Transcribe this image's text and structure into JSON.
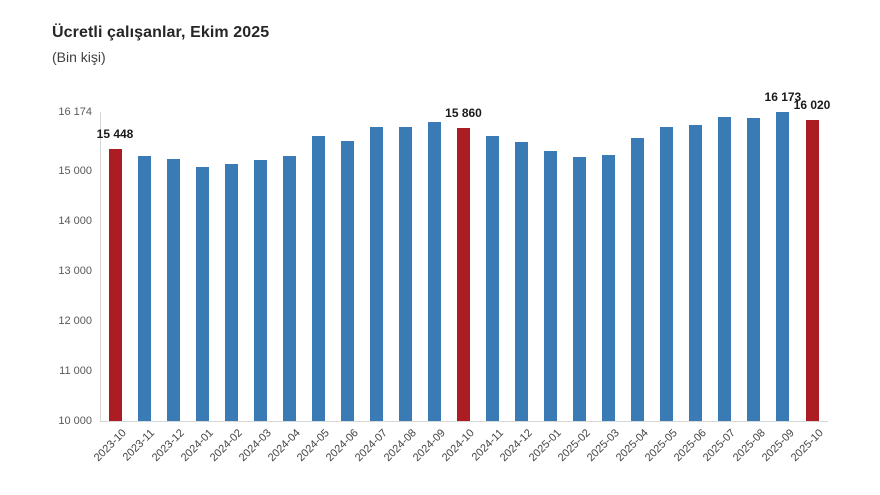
{
  "chart_data": {
    "type": "bar",
    "title": "Ücretli çalışanlar, Ekim 2025",
    "subtitle": "(Bin kişi)",
    "categories": [
      "2023-10",
      "2023-11",
      "2023-12",
      "2024-01",
      "2024-02",
      "2024-03",
      "2024-04",
      "2024-05",
      "2024-06",
      "2024-07",
      "2024-08",
      "2024-09",
      "2024-10",
      "2024-11",
      "2024-12",
      "2025-01",
      "2025-02",
      "2025-03",
      "2025-04",
      "2025-05",
      "2025-06",
      "2025-07",
      "2025-08",
      "2025-09",
      "2025-10"
    ],
    "values": [
      15448,
      15310,
      15250,
      15080,
      15150,
      15215,
      15295,
      15700,
      15600,
      15890,
      15885,
      15985,
      15860,
      15710,
      15575,
      15410,
      15290,
      15320,
      15655,
      15880,
      15920,
      16090,
      16065,
      16173,
      16020
    ],
    "bar_color": "#3A7BB5",
    "highlight_color": "#AC1D23",
    "highlight_indices": [
      0,
      12,
      24
    ],
    "data_labels": [
      {
        "index": 0,
        "text": "15 448"
      },
      {
        "index": 12,
        "text": "15 860"
      },
      {
        "index": 23,
        "text": "16 173"
      },
      {
        "index": 24,
        "text": "16 020"
      }
    ],
    "y_ticks": [
      {
        "value": 16174,
        "label": "16 174"
      },
      {
        "value": 15000,
        "label": "15 000"
      },
      {
        "value": 14000,
        "label": "14 000"
      },
      {
        "value": 13000,
        "label": "13 000"
      },
      {
        "value": 12000,
        "label": "12 000"
      },
      {
        "value": 11000,
        "label": "11 000"
      },
      {
        "value": 10000,
        "label": "10 000"
      }
    ],
    "ylim": [
      10000,
      16174
    ],
    "xlabel": "",
    "ylabel": "",
    "grid": false,
    "legend": "none"
  }
}
